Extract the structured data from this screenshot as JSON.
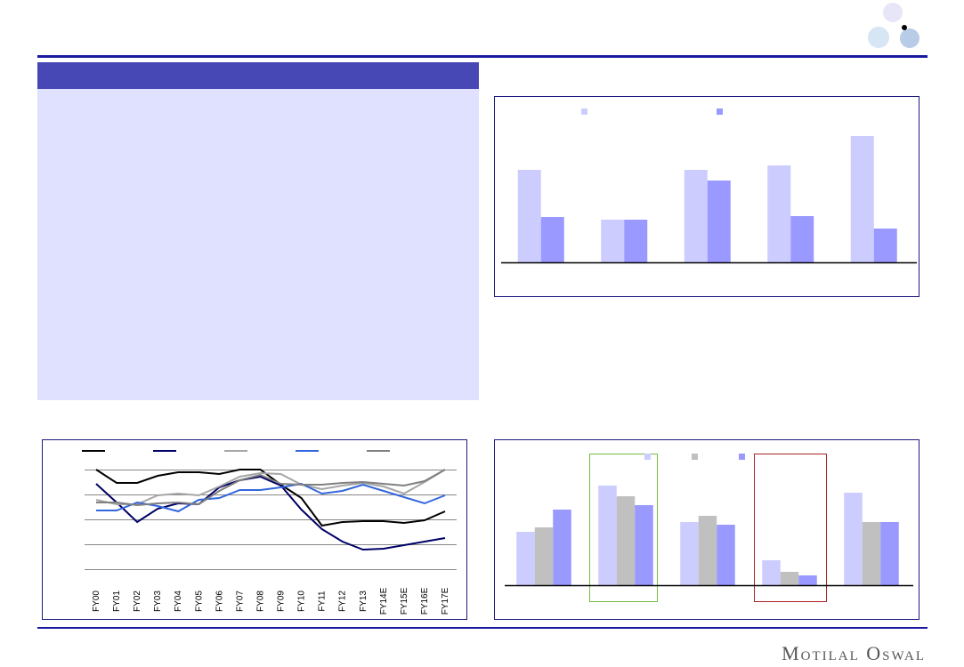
{
  "chart_data": [
    {
      "type": "bar",
      "categories": [
        null,
        null,
        null,
        null,
        null
      ],
      "series": [
        {
          "color": "#ccccff",
          "values": [
            104,
            48,
            104,
            109,
            142
          ]
        },
        {
          "color": "#9999ff",
          "values": [
            51,
            48,
            92,
            52,
            38
          ]
        }
      ],
      "ylim": [
        0,
        150
      ]
    },
    {
      "type": "line",
      "categories": [
        "FY00",
        "FY01",
        "FY02",
        "FY03",
        "FY04",
        "FY05",
        "FY06",
        "FY07",
        "FY08",
        "FY09",
        "FY10",
        "FY11",
        "FY12",
        "FY13",
        "FY14E",
        "FY15E",
        "FY16E",
        "FY17E"
      ],
      "series": [
        {
          "color": "#000000",
          "values": [
            112,
            97,
            97,
            105,
            109,
            109,
            107,
            112,
            112,
            95,
            80,
            49,
            53,
            54,
            54,
            52,
            55,
            65
          ]
        },
        {
          "color": "#000066",
          "values": [
            96,
            75,
            53,
            68,
            74,
            73,
            92,
            100,
            104,
            94,
            67,
            45,
            31,
            22,
            23,
            27,
            31,
            35
          ]
        },
        {
          "color": "#a6a6a6",
          "values": [
            78,
            73,
            73,
            83,
            85,
            83,
            93,
            104,
            108,
            107,
            95,
            90,
            94,
            97,
            93,
            85,
            98,
            112
          ]
        },
        {
          "color": "#3366dd",
          "values": [
            66,
            66,
            75,
            71,
            65,
            78,
            80,
            89,
            89,
            92,
            96,
            85,
            88,
            95,
            88,
            81,
            74,
            83
          ]
        },
        {
          "color": "#808080",
          "values": [
            75,
            75,
            72,
            74,
            75,
            73,
            88,
            100,
            106,
            96,
            95,
            95,
            97,
            98,
            96,
            94,
            99,
            112
          ]
        }
      ],
      "ylim": [
        0,
        112
      ],
      "yticks": [
        0,
        28,
        56,
        84,
        112
      ],
      "grid": true
    },
    {
      "type": "bar",
      "categories": [
        null,
        null,
        null,
        null,
        null
      ],
      "series": [
        {
          "color": "#ccccff",
          "values": [
            60,
            112,
            71,
            28,
            104
          ]
        },
        {
          "color": "#c0c0c0",
          "values": [
            65,
            100,
            78,
            15,
            71
          ]
        },
        {
          "color": "#9999ff",
          "values": [
            85,
            90,
            68,
            11,
            71
          ]
        }
      ],
      "ylim": [
        0,
        120
      ]
    }
  ],
  "footer": {
    "brand": "Motilal Oswal"
  }
}
